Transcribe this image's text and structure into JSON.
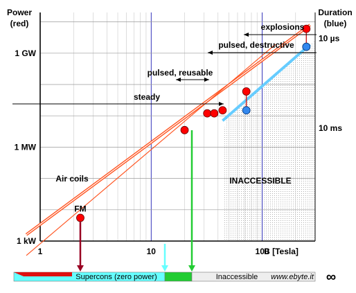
{
  "chart_data": {
    "type": "line",
    "x_axis": {
      "scale": "log",
      "range": [
        1,
        300
      ],
      "tick_labels": [
        "1",
        "10",
        "100"
      ],
      "tick_values": [
        1,
        10,
        100
      ],
      "label": "B [Tesla]"
    },
    "left_axis": {
      "label_lines": [
        "Power",
        "(red)"
      ],
      "scale": "log",
      "unit": "W",
      "range": [
        1000,
        20000000000
      ],
      "tick_labels": [
        "1 kW",
        "1 MW",
        "1 GW"
      ],
      "tick_values": [
        1000,
        1000000,
        1000000000
      ]
    },
    "right_axis": {
      "label_lines": [
        "Duration",
        "(blue)"
      ],
      "scale": "log",
      "unit": "s",
      "tick_labels": [
        "10 µs",
        "10 ms"
      ],
      "tick_values": [
        1e-05,
        0.01
      ]
    },
    "grid": true,
    "series": [
      {
        "color": "#ff3333",
        "axis": "left",
        "line": [
          [
            1,
            1600
          ],
          [
            270,
            8000000000
          ]
        ],
        "points": [
          {
            "x": 2.3,
            "y": 5500,
            "label": "FM"
          },
          {
            "x": 20,
            "y": 3500000
          },
          {
            "x": 32,
            "y": 12000000
          },
          {
            "x": 37,
            "y": 12000000
          },
          {
            "x": 44,
            "y": 15000000
          },
          {
            "x": 72,
            "y": 60000000
          },
          {
            "x": 250,
            "y": 6000000000
          }
        ]
      },
      {
        "color": "#66ccff",
        "axis": "right",
        "line": [
          [
            44,
            7000000
          ],
          [
            270,
            1900000000
          ]
        ],
        "points": [
          {
            "x": 72,
            "y": 15000000
          },
          {
            "x": 250,
            "y": 1600000000
          }
        ]
      }
    ],
    "regions": [
      {
        "label": "Air coils"
      },
      {
        "label": "INACCESSIBLE",
        "x_from": 45
      }
    ],
    "annotations": [
      {
        "label": "explosions",
        "arrow": "left",
        "x_from": 118,
        "x_to": 300
      },
      {
        "label": "pulsed, destructive",
        "arrow": "left",
        "x_from": 75,
        "x_to": 300
      },
      {
        "label": "pulsed, reusable",
        "arrow": "both",
        "x_from": 25,
        "x_to": 75
      },
      {
        "label": "steady",
        "arrow": "right",
        "x_from": 1,
        "x_to": 45
      }
    ]
  },
  "bottom_bar": {
    "segments": [
      {
        "label": "Supercons (zero power)",
        "color": "#66ffff"
      },
      {
        "label": "",
        "color": "#22cc33"
      },
      {
        "label": "Inaccessible",
        "color": "#eeeeee"
      }
    ],
    "air_marker_color": "#dd1111",
    "credit": "www.ebyte.it",
    "infinity": "∞"
  },
  "colors": {
    "red_line": "#ff5522",
    "red_point": "#ff0000",
    "blue_line": "#66ccff",
    "blue_point": "#3388ee",
    "dark_red_arrow": "#990022",
    "cyan_arrow": "#66ffff",
    "green_arrow": "#22cc33",
    "grid_major": "#0000aa",
    "grid_minor": "#c8c8c8"
  }
}
